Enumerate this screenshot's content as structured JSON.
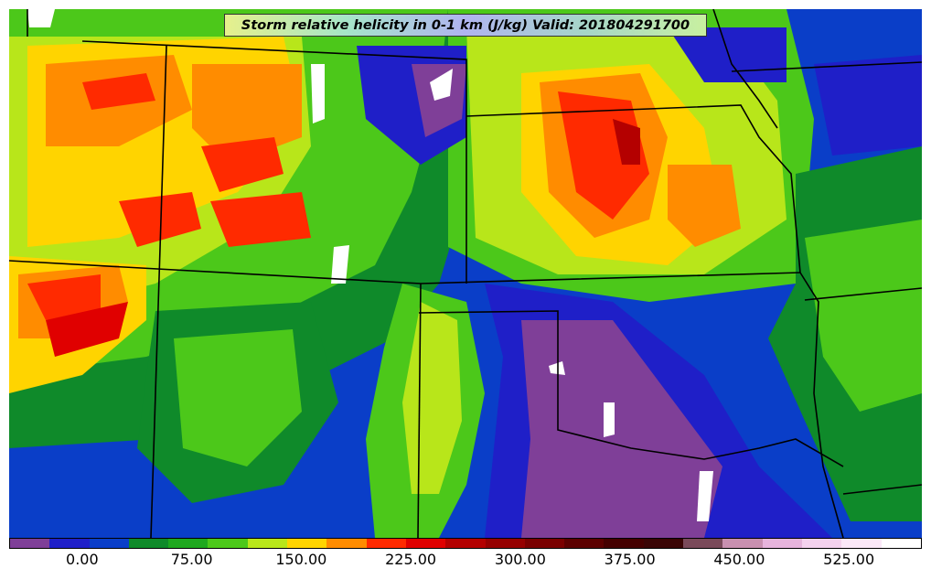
{
  "title": "Storm relative helicity in 0-1 km (J/kg) Valid: 201804291700",
  "colorbar": {
    "colors": [
      "#7f3f98",
      "#1f1fc8",
      "#0a3ec8",
      "#0f8a2a",
      "#1ea81e",
      "#4cc81a",
      "#b8e61a",
      "#ffd400",
      "#ff8c00",
      "#ff2a00",
      "#e00000",
      "#b40000",
      "#960000",
      "#7a0000",
      "#5c0000",
      "#450000",
      "#3a0505",
      "#7a4a5a",
      "#c890b0",
      "#e6b4dc",
      "#f4d2ee",
      "#fbe8f8",
      "#ffffff"
    ],
    "tick_labels": [
      "0.00",
      "75.00",
      "150.00",
      "225.00",
      "300.00",
      "375.00",
      "450.00",
      "525.00"
    ],
    "tick_fractions": [
      0.08,
      0.2,
      0.32,
      0.44,
      0.56,
      0.68,
      0.8,
      0.92
    ]
  },
  "map": {
    "background": "#0a3ec8"
  }
}
